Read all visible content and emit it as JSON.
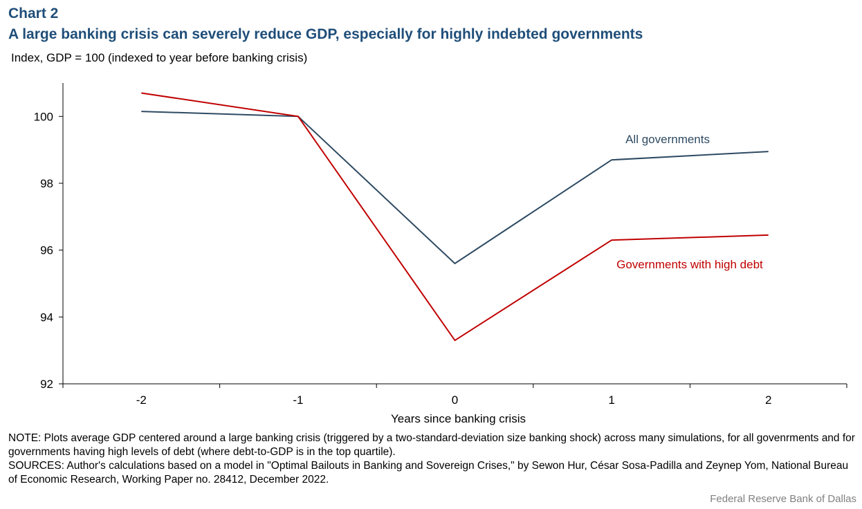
{
  "header": {
    "chart_number": "Chart 2",
    "title": "A large banking crisis can severely reduce GDP, especially for highly indebted governments",
    "units": "Index, GDP = 100 (indexed to year before banking crisis)"
  },
  "chart_data": {
    "type": "line",
    "title": "A large banking crisis can severely reduce GDP, especially for highly indebted governments",
    "ylabel": "Index, GDP = 100 (indexed to year before banking crisis)",
    "xlabel": "Years since banking crisis",
    "x": [
      -2,
      -1,
      0,
      1,
      2
    ],
    "x_tick_labels": [
      "-2",
      "-1",
      "0",
      "1",
      "2"
    ],
    "ylim": [
      92,
      101
    ],
    "y_ticks": [
      92,
      94,
      96,
      98,
      100
    ],
    "y_tick_labels": [
      "92",
      "94",
      "96",
      "98",
      "100"
    ],
    "grid": false,
    "series": [
      {
        "name": "All governments",
        "color": "#2e4a62",
        "values": [
          100.15,
          100.0,
          95.6,
          98.7,
          98.95
        ]
      },
      {
        "name": "Governments with high debt",
        "color": "#c00000",
        "values": [
          100.7,
          100.0,
          93.3,
          96.3,
          96.45
        ]
      }
    ]
  },
  "footer": {
    "note": "NOTE: Plots average GDP centered around a large banking crisis (triggered by a two-standard-deviation size banking shock) across many simulations, for all govenrments and for governments having high levels of debt (where debt-to-GDP is in the top quartile).",
    "sources": "SOURCES: Author's calculations based on a model in \"Optimal Bailouts in Banking and Sovereign Crises,\" by Sewon Hur, César Sosa-Padilla and Zeynep Yom, National Bureau of Economic Research, Working Paper no. 28412, December 2022.",
    "credit": "Federal Reserve Bank of Dallas"
  }
}
